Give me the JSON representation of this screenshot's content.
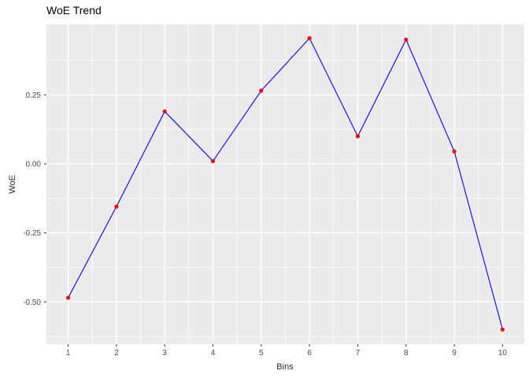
{
  "chart_data": {
    "type": "line",
    "title": "WoE Trend",
    "xlabel": "Bins",
    "ylabel": "WoE",
    "x": [
      1,
      2,
      3,
      4,
      5,
      6,
      7,
      8,
      9,
      10
    ],
    "values": [
      -0.485,
      -0.155,
      0.19,
      0.01,
      0.265,
      0.455,
      0.1,
      0.45,
      0.045,
      -0.6
    ],
    "series_name": "WoE",
    "xlim": [
      0.55,
      10.45
    ],
    "ylim": [
      -0.653,
      0.505
    ],
    "x_ticks": [
      1,
      2,
      3,
      4,
      5,
      6,
      7,
      8,
      9,
      10
    ],
    "x_tick_labels": [
      "1",
      "2",
      "3",
      "4",
      "5",
      "6",
      "7",
      "8",
      "9",
      "10"
    ],
    "x_minor": [
      1.5,
      2.5,
      3.5,
      4.5,
      5.5,
      6.5,
      7.5,
      8.5,
      9.5
    ],
    "y_ticks": [
      0.25,
      0.0,
      -0.25,
      -0.5
    ],
    "y_tick_labels": [
      "0.25",
      "0.00",
      "-0.25",
      "-0.50"
    ],
    "y_minor": [
      0.375,
      0.125,
      -0.125,
      -0.375,
      -0.625
    ],
    "grid": true,
    "legend": "none",
    "colors": {
      "line": "#0000FF",
      "point": "#FF0000",
      "panel_bg": "#EBEBEB",
      "grid_major": "#FFFFFF",
      "grid_minor": "#FFFFFF",
      "tick_mark": "#333333",
      "tick_text": "#4D4D4D",
      "axis_title": "#2B2B2B",
      "title_text": "#000000",
      "background": "#FFFFFF"
    }
  }
}
